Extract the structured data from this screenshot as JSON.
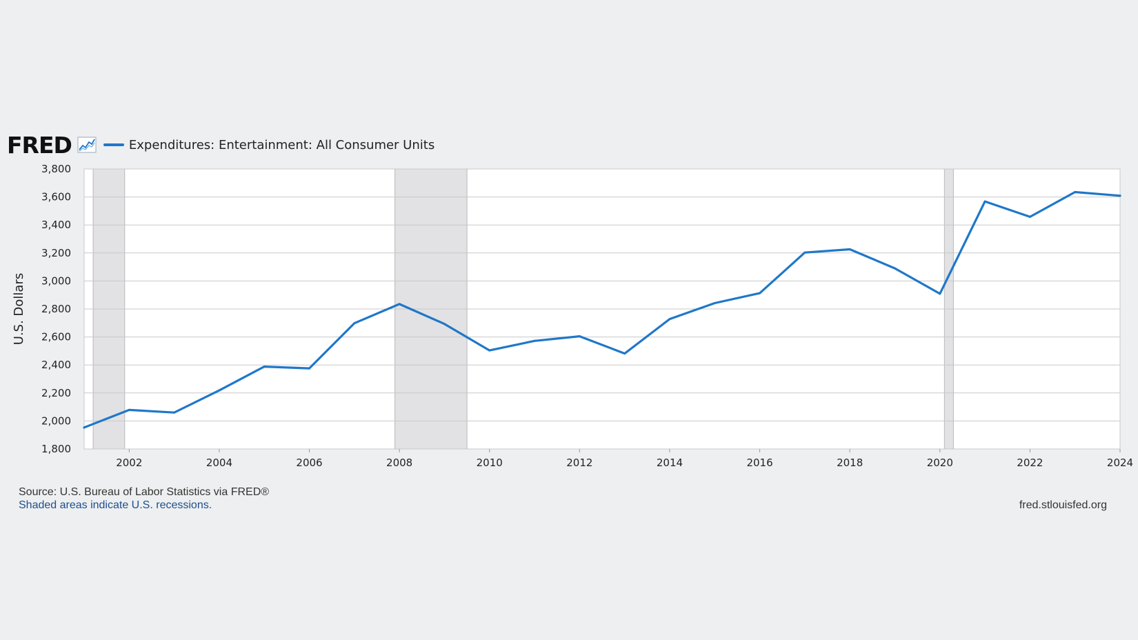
{
  "header": {
    "logo_text": "FRED",
    "legend_label": "Expenditures: Entertainment: All Consumer Units"
  },
  "footer": {
    "source": "Source: U.S. Bureau of Labor Statistics via FRED®",
    "note": "Shaded areas indicate U.S. recessions.",
    "url": "fred.stlouisfed.org"
  },
  "colors": {
    "series": "#1f77c9",
    "recession": "#e2e2e4",
    "grid": "#c8c8c8",
    "plot_bg": "#ffffff"
  },
  "chart_data": {
    "type": "line",
    "ylabel": "U.S. Dollars",
    "xlim": [
      2001,
      2024
    ],
    "ylim": [
      1800,
      3800
    ],
    "yticks": [
      1800,
      2000,
      2200,
      2400,
      2600,
      2800,
      3000,
      3200,
      3400,
      3600,
      3800
    ],
    "xticks": [
      2002,
      2004,
      2006,
      2008,
      2010,
      2012,
      2014,
      2016,
      2018,
      2020,
      2022,
      2024
    ],
    "grid": true,
    "legend_position": "top-left",
    "recessions": [
      [
        2001.2,
        2001.9
      ],
      [
        2007.9,
        2009.5
      ],
      [
        2020.1,
        2020.3
      ]
    ],
    "series": [
      {
        "name": "Expenditures: Entertainment: All Consumer Units",
        "x": [
          2001,
          2002,
          2003,
          2004,
          2005,
          2006,
          2007,
          2008,
          2009,
          2010,
          2011,
          2012,
          2013,
          2014,
          2015,
          2016,
          2017,
          2018,
          2019,
          2020,
          2021,
          2022,
          2023,
          2024
        ],
        "values": [
          1953,
          2079,
          2060,
          2218,
          2388,
          2376,
          2698,
          2835,
          2693,
          2504,
          2572,
          2605,
          2482,
          2728,
          2842,
          2913,
          3203,
          3226,
          3090,
          2909,
          3568,
          3458,
          3635,
          3609
        ]
      }
    ]
  }
}
